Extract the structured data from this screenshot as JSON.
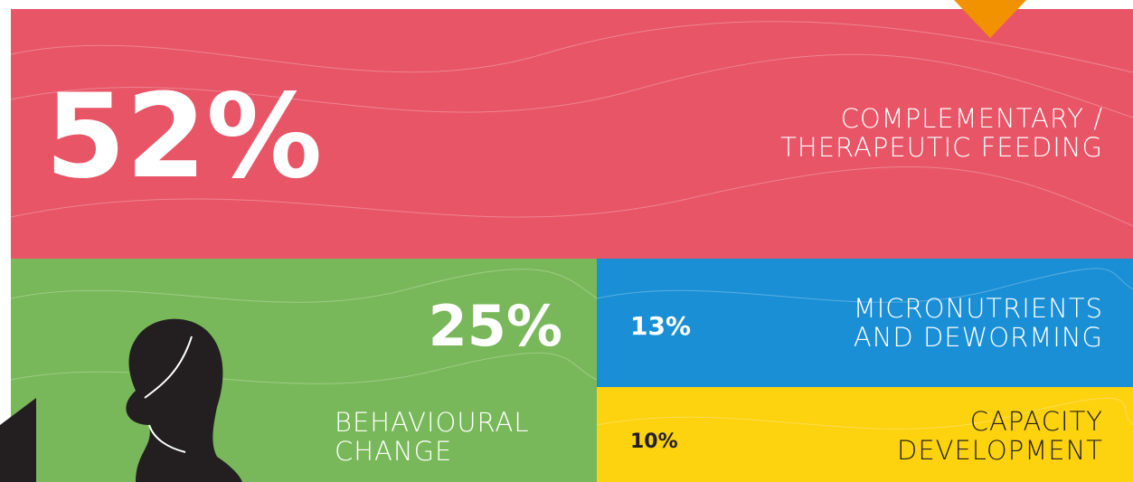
{
  "chart_data": {
    "type": "treemap",
    "categories": [
      "COMPLEMENTARY /\nTHERAPEUTIC FEEDING",
      "BEHAVIOURAL\nCHANGE",
      "MICRONUTRIENTS\nAND DEWORMING",
      "CAPACITY\nDEVELOPMENT"
    ],
    "values": [
      52,
      25,
      13,
      10
    ],
    "value_labels": [
      "52%",
      "25%",
      "13%",
      "10%"
    ],
    "colors": [
      "#e85567",
      "#79b85a",
      "#1a8fd6",
      "#fdd20e"
    ]
  }
}
